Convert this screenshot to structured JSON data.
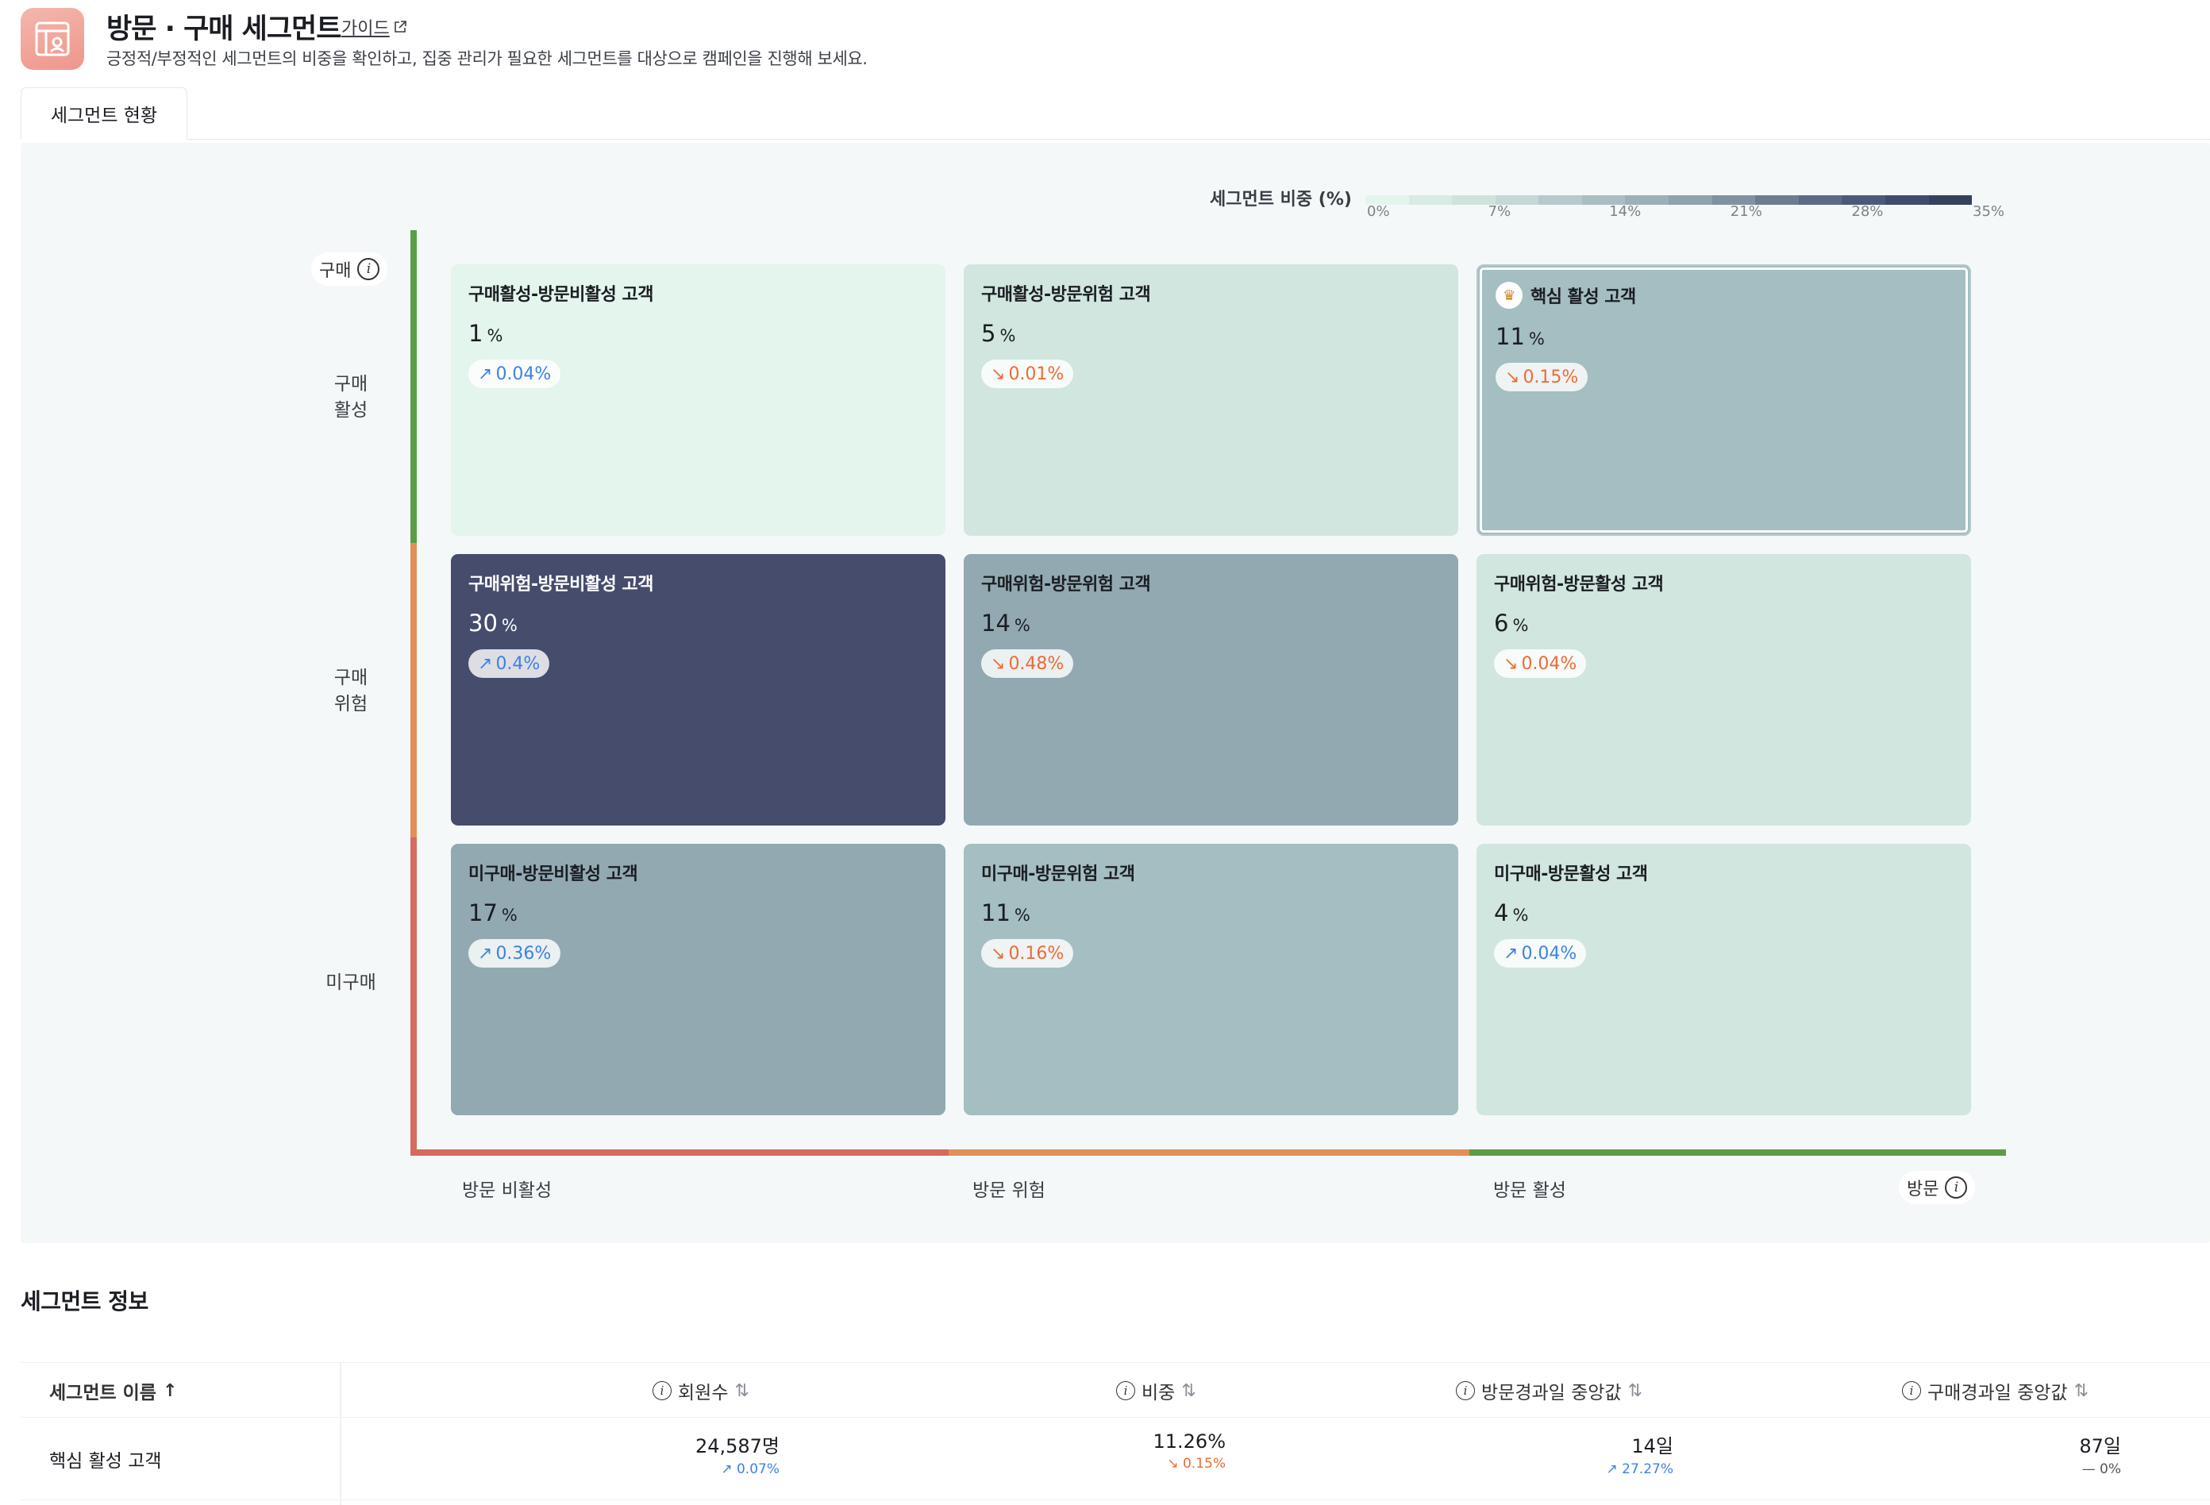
{
  "header": {
    "title": "방문 · 구매 세그먼트",
    "guide_link": "가이드",
    "description": "긍정적/부정적인 세그먼트의 비중을 확인하고, 집중 관리가 필요한 세그먼트를 대상으로 캠페인을 진행해 보세요."
  },
  "tabs": [
    {
      "label": "세그먼트 현황",
      "active": true
    }
  ],
  "legend": {
    "label": "세그먼트 비중 (%)",
    "ticks": [
      "0%",
      "7%",
      "14%",
      "21%",
      "28%",
      "35%"
    ],
    "colors": [
      "#e3f5ec",
      "#d8ebe4",
      "#cfe3dd",
      "#c4d8d6",
      "#b6cacd",
      "#a9bec3",
      "#9bb0b8",
      "#8fa3ad",
      "#7f92a1",
      "#6c7d91",
      "#5b6a85",
      "#4c5a79",
      "#404c6c",
      "#36405f"
    ]
  },
  "axes": {
    "y_title": "구매",
    "x_title": "방문",
    "y_labels": [
      "구매\n활성",
      "구매\n위험",
      "미구매"
    ],
    "x_labels": [
      "방문 비활성",
      "방문 위험",
      "방문 활성"
    ],
    "y_colors": [
      "#5d9b4a",
      "#e0905a",
      "#d66a5e"
    ],
    "x_colors": [
      "#d66a5e",
      "#e0905a",
      "#5d9b4a"
    ]
  },
  "segments": [
    {
      "name": "구매활성-방문비활성 고객",
      "share": "1",
      "unit": "%",
      "change": "0.04%",
      "trend": "up",
      "color": "#e3f5ec"
    },
    {
      "name": "구매활성-방문위험 고객",
      "share": "5",
      "unit": "%",
      "change": "0.01%",
      "trend": "down",
      "color": "#d0e6df"
    },
    {
      "name": "핵심 활성 고객",
      "share": "11",
      "unit": "%",
      "change": "0.15%",
      "trend": "down",
      "color": "#a4bec1",
      "selected": true
    },
    {
      "name": "구매위험-방문비활성 고객",
      "share": "30",
      "unit": "%",
      "change": "0.4%",
      "trend": "up",
      "color": "#464c6c"
    },
    {
      "name": "구매위험-방문위험 고객",
      "share": "14",
      "unit": "%",
      "change": "0.48%",
      "trend": "down",
      "color": "#92a9b2"
    },
    {
      "name": "구매위험-방문활성 고객",
      "share": "6",
      "unit": "%",
      "change": "0.04%",
      "trend": "down",
      "color": "#d0e6df"
    },
    {
      "name": "미구매-방문비활성 고객",
      "share": "17",
      "unit": "%",
      "change": "0.36%",
      "trend": "up",
      "color": "#92a9b2"
    },
    {
      "name": "미구매-방문위험 고객",
      "share": "11",
      "unit": "%",
      "change": "0.16%",
      "trend": "down",
      "color": "#a4bec1"
    },
    {
      "name": "미구매-방문활성 고객",
      "share": "4",
      "unit": "%",
      "change": "0.04%",
      "trend": "up",
      "color": "#d0e6df"
    }
  ],
  "info": {
    "title": "세그먼트 정보",
    "columns": [
      "세그먼트 이름",
      "회원수",
      "비중",
      "방문경과일 중앙값",
      "구매경과일 중앙값"
    ],
    "rows": [
      {
        "name": "핵심 활성 고객",
        "members": "24,587명",
        "members_change": "0.07%",
        "share": "11.26%",
        "share_change": "0.15%",
        "visit_median": "14일",
        "visit_change": "27.27%",
        "purchase_median": "87일",
        "purchase_change": "0%"
      }
    ]
  }
}
